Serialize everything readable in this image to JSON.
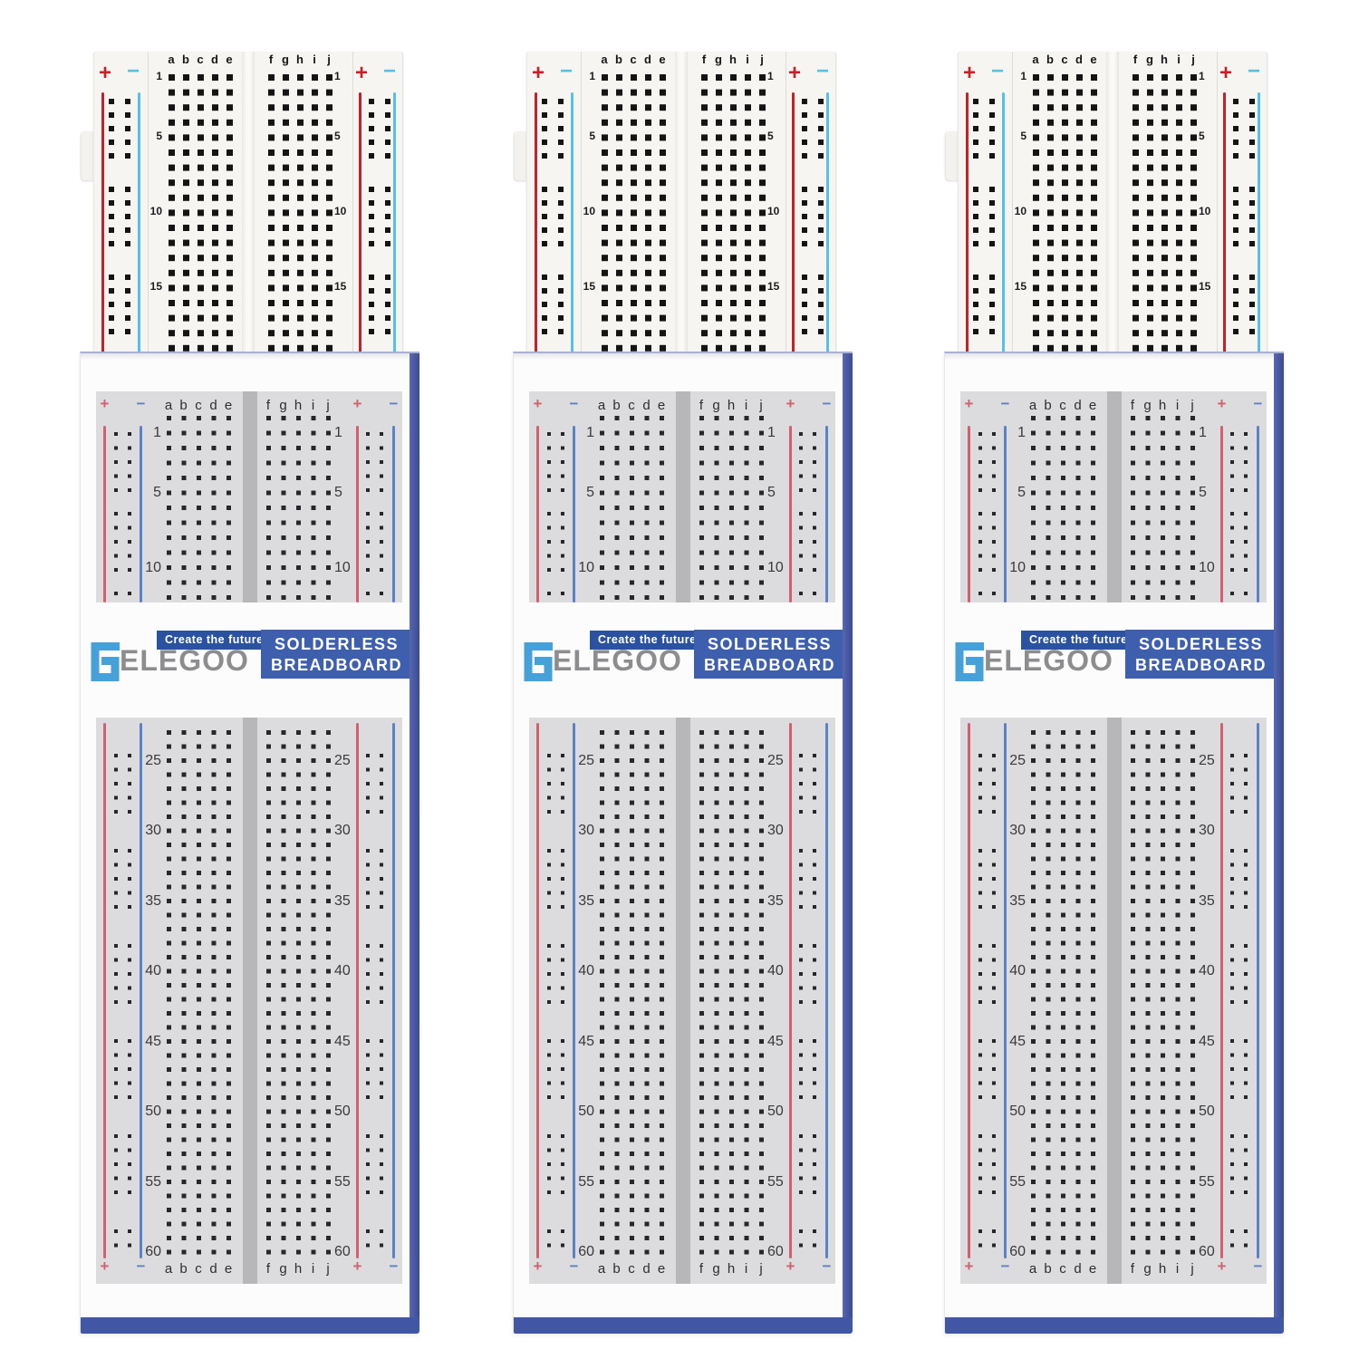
{
  "photo": {
    "subject": "Three ELEGOO solderless breadboards standing upright in retail packaging",
    "unit_count": 3
  },
  "symbols": {
    "plus": "+",
    "minus": "−"
  },
  "board": {
    "col_labels_left": [
      "a",
      "b",
      "c",
      "d",
      "e"
    ],
    "col_labels_right": [
      "f",
      "g",
      "h",
      "i",
      "j"
    ],
    "row_numbers": [
      "1",
      "5",
      "10",
      "15"
    ]
  },
  "package": {
    "col_labels_left": [
      "a",
      "b",
      "c",
      "d",
      "e"
    ],
    "col_labels_right": [
      "f",
      "g",
      "h",
      "i",
      "j"
    ],
    "top_panel": {
      "row_numbers": [
        "1",
        "5",
        "10"
      ]
    },
    "bottom_panel": {
      "row_numbers": [
        "25",
        "30",
        "35",
        "40",
        "45",
        "50",
        "55",
        "60"
      ]
    },
    "logo": {
      "tagline": "Create the future",
      "brand": "ELEGOO",
      "product_line1": "SOLDERLESS",
      "product_line2": "BREADBOARD"
    }
  },
  "colors": {
    "board_red": "#c42129",
    "board_cyan": "#55c0ea",
    "board_dot": "#141414",
    "print_red": "#d2606e",
    "print_blue": "#5b82c4",
    "print_dot": "#27272b",
    "panel_gray": "#dcdcde",
    "divider_gray": "#b7b7ba",
    "spine_blue": "#4b5aa5",
    "bottom_edge_blue": "#4156a5",
    "product_box_blue": "#3d5fae",
    "tagline_blue": "#2a52a0",
    "brand_gray": "#8d8d90",
    "logo_glyph_blue": "#45a1d8"
  }
}
